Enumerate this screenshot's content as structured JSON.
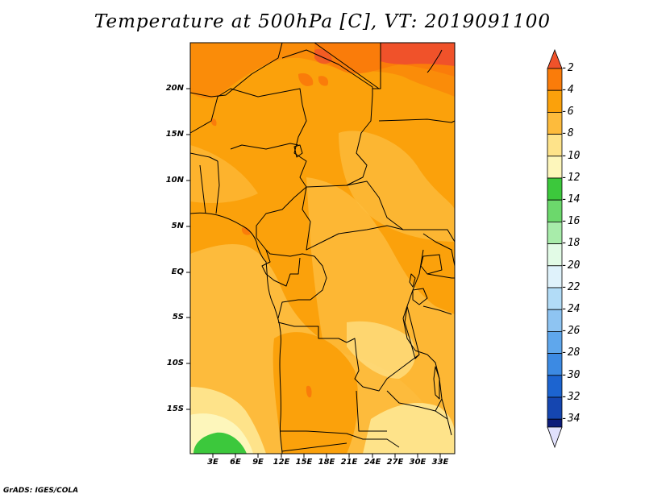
{
  "title": "Temperature at 500hPa [C], VT: 2019091100",
  "lat_labels": [
    "20N",
    "15N",
    "10N",
    "5N",
    "EQ",
    "5S",
    "10S",
    "15S"
  ],
  "lon_labels": [
    "3E",
    "6E",
    "9E",
    "12E",
    "15E",
    "18E",
    "21E",
    "24E",
    "27E",
    "30E",
    "33E"
  ],
  "colorbar": {
    "labels": [
      "-2",
      "-4",
      "-6",
      "-8",
      "-10",
      "-12",
      "-14",
      "-16",
      "-18",
      "-20",
      "-22",
      "-24",
      "-26",
      "-28",
      "-30",
      "-32",
      "-34"
    ],
    "colors": [
      "#f0522a",
      "#fa7c0a",
      "#fba10b",
      "#fdbb3c",
      "#fee38a",
      "#fdf6bb",
      "#3cc83c",
      "#6cd86c",
      "#a8ecaa",
      "#e2fbe6",
      "#dff2fb",
      "#b2dcf7",
      "#8ec4f2",
      "#5fa7ec",
      "#3c8ae3",
      "#1c64d0",
      "#1546b0",
      "#0c1c7a",
      "#e1e1fc"
    ]
  },
  "colors": {
    "high": "#fa7c0a",
    "main": "#fba10b",
    "mid": "#fdbb3c",
    "low": "#fee38a",
    "lowest": "#fdf6bb",
    "green": "#3cc83c"
  },
  "footer": "GrADS: IGES/COLA"
}
